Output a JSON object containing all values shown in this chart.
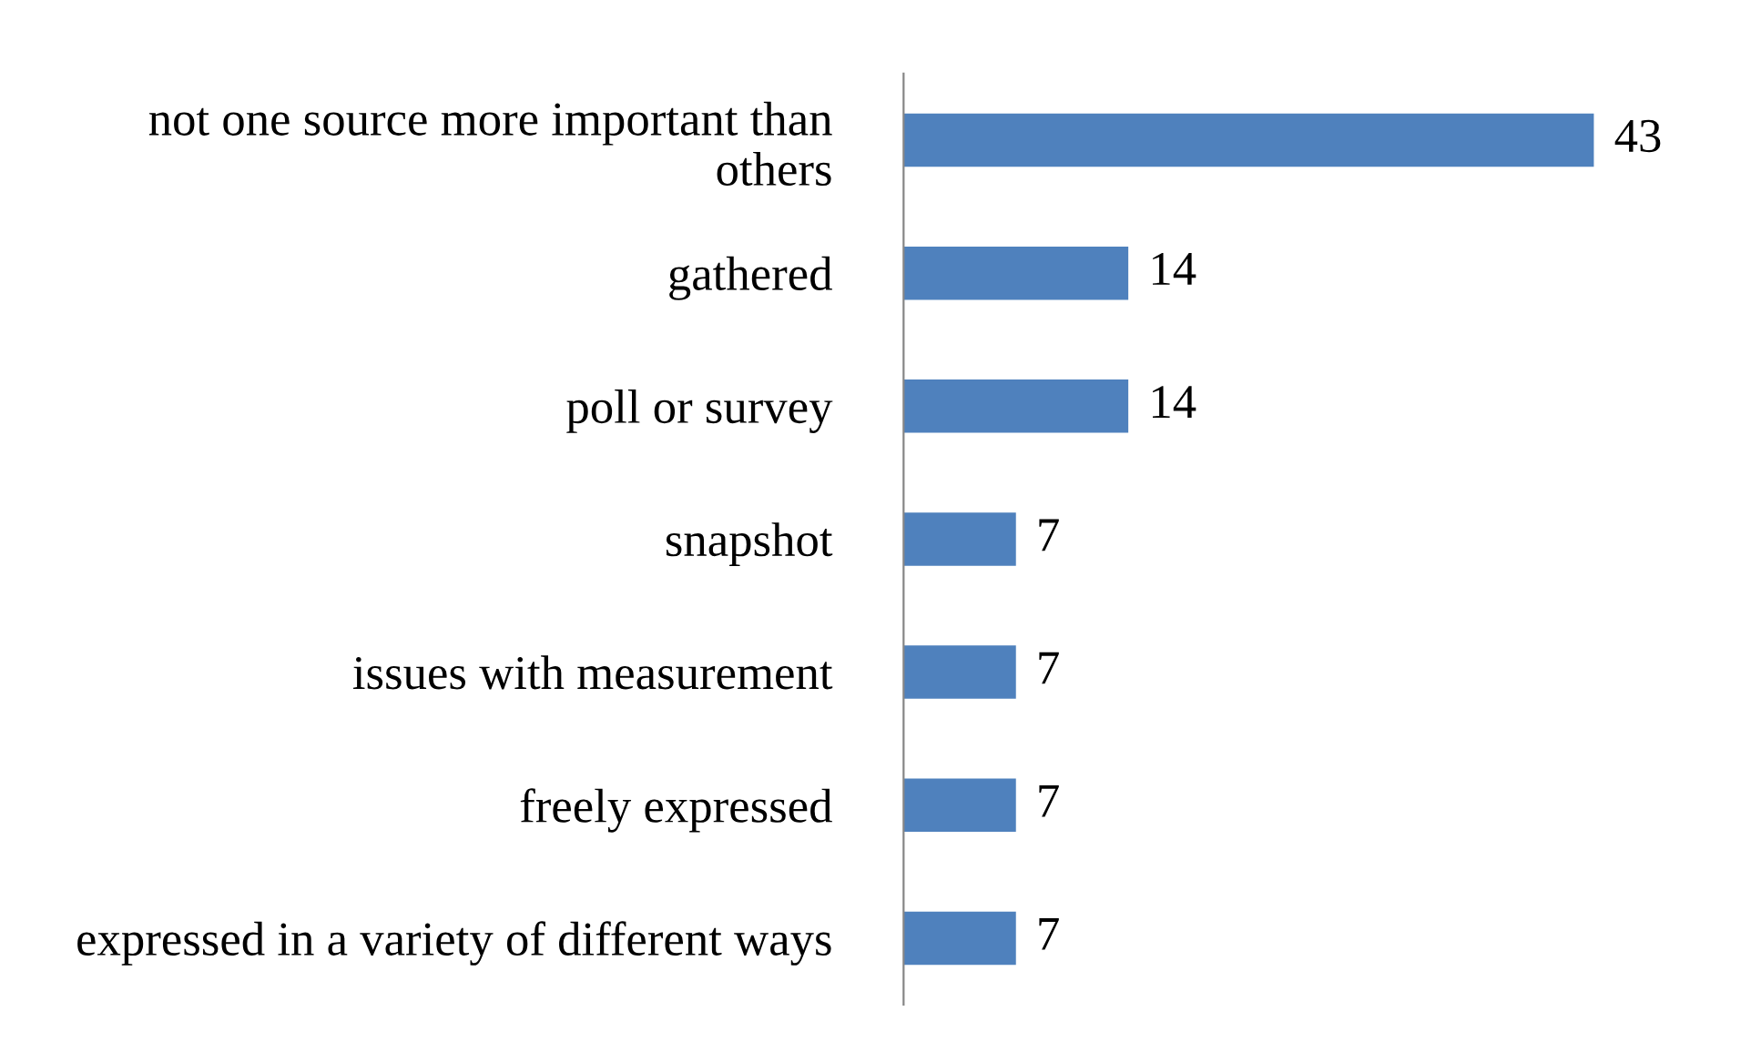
{
  "chart_data": {
    "type": "bar",
    "orientation": "horizontal",
    "categories": [
      "not one source more important than others",
      "gathered",
      "poll or survey",
      "snapshot",
      "issues with measurement",
      "freely expressed",
      "expressed in a variety of different ways"
    ],
    "values": [
      43,
      14,
      14,
      7,
      7,
      7,
      7
    ],
    "color": "#4f81bd",
    "data_labels": true,
    "grid": false,
    "legend": false,
    "tick_labels": "y"
  }
}
